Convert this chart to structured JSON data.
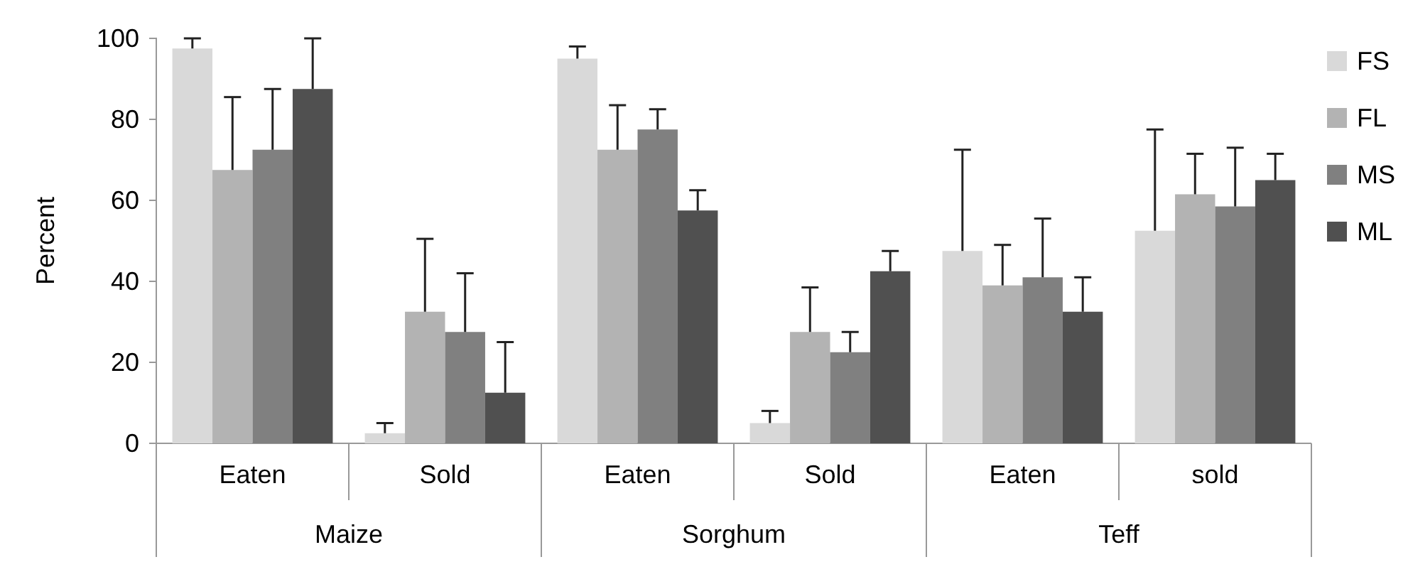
{
  "chart_data": {
    "type": "bar",
    "ylabel": "Percent",
    "categories": [
      "Eaten",
      "Sold",
      "Eaten",
      "Sold",
      "Eaten",
      "sold"
    ],
    "annotations": [
      "Maize",
      "Sorghum",
      "Teff"
    ],
    "series": [
      {
        "name": "FS",
        "color": "#d9d9d9",
        "values": [
          97.5,
          2.5,
          95,
          5,
          47.5,
          52.5
        ],
        "errors": [
          [
            97.5,
            100
          ],
          [
            2.5,
            5
          ],
          [
            95,
            98
          ],
          [
            5,
            8
          ],
          [
            47.5,
            72.5
          ],
          [
            52.5,
            77.5
          ]
        ]
      },
      {
        "name": "FL",
        "color": "#b3b3b3",
        "values": [
          67.5,
          32.5,
          72.5,
          27.5,
          39,
          61.5
        ],
        "errors": [
          [
            67.5,
            85.5
          ],
          [
            32.5,
            50.5
          ],
          [
            72.5,
            83.5
          ],
          [
            27.5,
            38.5
          ],
          [
            39,
            49
          ],
          [
            61.5,
            71.5
          ]
        ]
      },
      {
        "name": "MS",
        "color": "#808080",
        "values": [
          72.5,
          27.5,
          77.5,
          22.5,
          41,
          58.5
        ],
        "errors": [
          [
            72.5,
            87.5
          ],
          [
            27.5,
            42
          ],
          [
            77.5,
            82.5
          ],
          [
            22.5,
            27.5
          ],
          [
            41,
            55.5
          ],
          [
            58.5,
            73
          ]
        ]
      },
      {
        "name": "ML",
        "color": "#505050",
        "values": [
          87.5,
          12.5,
          57.5,
          42.5,
          32.5,
          65
        ],
        "errors": [
          [
            87.5,
            100
          ],
          [
            12.5,
            25
          ],
          [
            57.5,
            62.5
          ],
          [
            42.5,
            47.5
          ],
          [
            32.5,
            41
          ],
          [
            65,
            71.5
          ]
        ]
      }
    ],
    "ylim": [
      0,
      100
    ],
    "yticks": [
      0,
      20,
      40,
      60,
      80,
      100
    ],
    "grid": false,
    "legend": "right"
  }
}
